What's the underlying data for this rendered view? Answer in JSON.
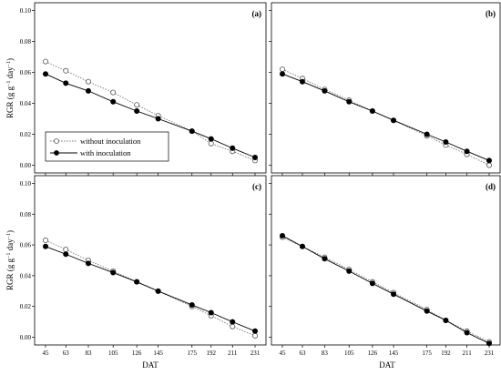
{
  "chart_data": {
    "type": "line",
    "xlabel": "DAT",
    "ylabel": "RGR (g g⁻¹ day⁻¹)",
    "ylabel_parts": [
      "RGR (g g",
      "−1",
      " day",
      "−1",
      ")"
    ],
    "x": [
      45,
      63,
      83,
      105,
      126,
      145,
      175,
      192,
      211,
      231
    ],
    "x_tick_labels": [
      "45",
      "63",
      "83",
      "105",
      "126",
      "145",
      "175",
      "192",
      "211",
      "231"
    ],
    "ylim": [
      -0.005,
      0.105
    ],
    "y_ticks": [
      0.0,
      0.02,
      0.04,
      0.06,
      0.08,
      0.1
    ],
    "y_tick_labels": [
      "0.00",
      "0.02",
      "0.04",
      "0.06",
      "0.08",
      "0.10"
    ],
    "legend": {
      "placement": "left-middle of panel (a)",
      "entries": [
        "without inoculation",
        "with inoculation"
      ]
    },
    "panels": [
      {
        "label": "(a)",
        "series": [
          {
            "name": "without inoculation",
            "values": [
              0.067,
              0.061,
              0.054,
              0.047,
              0.039,
              0.032,
              0.022,
              0.014,
              0.009,
              0.003
            ]
          },
          {
            "name": "with inoculation",
            "values": [
              0.059,
              0.053,
              0.048,
              0.041,
              0.035,
              0.03,
              0.022,
              0.017,
              0.011,
              0.005
            ]
          }
        ]
      },
      {
        "label": "(b)",
        "series": [
          {
            "name": "without inoculation",
            "values": [
              0.062,
              0.056,
              0.049,
              0.042,
              0.035,
              0.029,
              0.019,
              0.013,
              0.007,
              0.0
            ]
          },
          {
            "name": "with inoculation",
            "values": [
              0.059,
              0.054,
              0.048,
              0.041,
              0.035,
              0.029,
              0.02,
              0.015,
              0.009,
              0.003
            ]
          }
        ]
      },
      {
        "label": "(c)",
        "series": [
          {
            "name": "without inoculation",
            "values": [
              0.063,
              0.057,
              0.05,
              0.043,
              0.036,
              0.03,
              0.02,
              0.014,
              0.007,
              0.001
            ]
          },
          {
            "name": "with inoculation",
            "values": [
              0.059,
              0.054,
              0.048,
              0.042,
              0.036,
              0.03,
              0.021,
              0.016,
              0.01,
              0.004
            ]
          }
        ]
      },
      {
        "label": "(d)",
        "series": [
          {
            "name": "without inoculation",
            "values": [
              0.065,
              0.059,
              0.052,
              0.044,
              0.036,
              0.029,
              0.018,
              0.011,
              0.004,
              -0.003
            ]
          },
          {
            "name": "with inoculation",
            "values": [
              0.066,
              0.059,
              0.051,
              0.043,
              0.035,
              0.028,
              0.017,
              0.011,
              0.003,
              -0.004
            ]
          }
        ]
      }
    ]
  }
}
